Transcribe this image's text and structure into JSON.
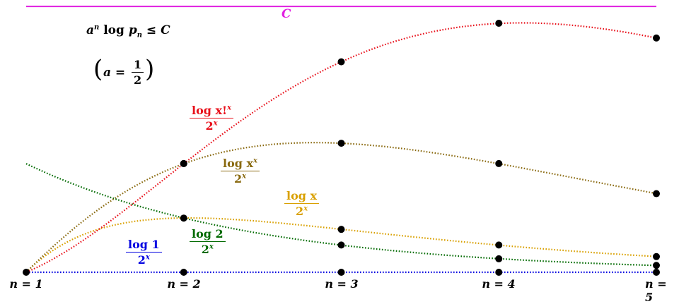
{
  "chart_data": {
    "type": "line",
    "title": "a^n log p_n ≤ C",
    "subtitle_left": "a = ",
    "subtitle_num": "1",
    "subtitle_den": "2",
    "title_parts": {
      "a": "a",
      "n": "n",
      "log": "log",
      "p": "p",
      "sub": "n",
      "le": "≤",
      "C": "C"
    },
    "constant_line": {
      "label": "C",
      "value": 0.85,
      "color": "#e020e0"
    },
    "x": [
      1,
      2,
      3,
      4,
      5
    ],
    "xtick_labels": [
      "n = 1",
      "n = 2",
      "n = 3",
      "n = 4",
      "n = 5"
    ],
    "ylim": [
      0,
      0.87
    ],
    "xlim": [
      1,
      5
    ],
    "grid": false,
    "series": [
      {
        "name": "log x!^x / 2^x",
        "num": "log x!",
        "num_sup": "x",
        "den": "2",
        "den_sup": "x",
        "color": "#e8101a",
        "values": [
          0,
          0.347,
          0.672,
          0.795,
          0.748
        ],
        "markers": [
          2,
          3,
          4,
          5
        ]
      },
      {
        "name": "log x^x / 2^x",
        "num": "log x",
        "num_sup": "x",
        "den": "2",
        "den_sup": "x",
        "color": "#8a6a10",
        "values": [
          0,
          0.347,
          0.412,
          0.347,
          0.251
        ],
        "markers": [
          2,
          3,
          4,
          5
        ]
      },
      {
        "name": "log x / 2^x",
        "num": "log x",
        "num_sup": "",
        "den": "2",
        "den_sup": "x",
        "color": "#d9a000",
        "values": [
          0,
          0.173,
          0.137,
          0.087,
          0.05
        ],
        "markers": [
          2,
          3,
          4,
          5
        ]
      },
      {
        "name": "log 2 / 2^x",
        "num": "log 2",
        "num_sup": "",
        "den": "2",
        "den_sup": "x",
        "color": "#006a00",
        "values": [
          0.347,
          0.173,
          0.087,
          0.043,
          0.022
        ],
        "markers": [
          3,
          4,
          5
        ]
      },
      {
        "name": "log 1 / 2^x",
        "num": "log 1",
        "num_sup": "",
        "den": "2",
        "den_sup": "x",
        "color": "#0000e0",
        "values": [
          0,
          0,
          0,
          0,
          0
        ],
        "markers": [
          1,
          2,
          3,
          4,
          5
        ]
      }
    ]
  }
}
